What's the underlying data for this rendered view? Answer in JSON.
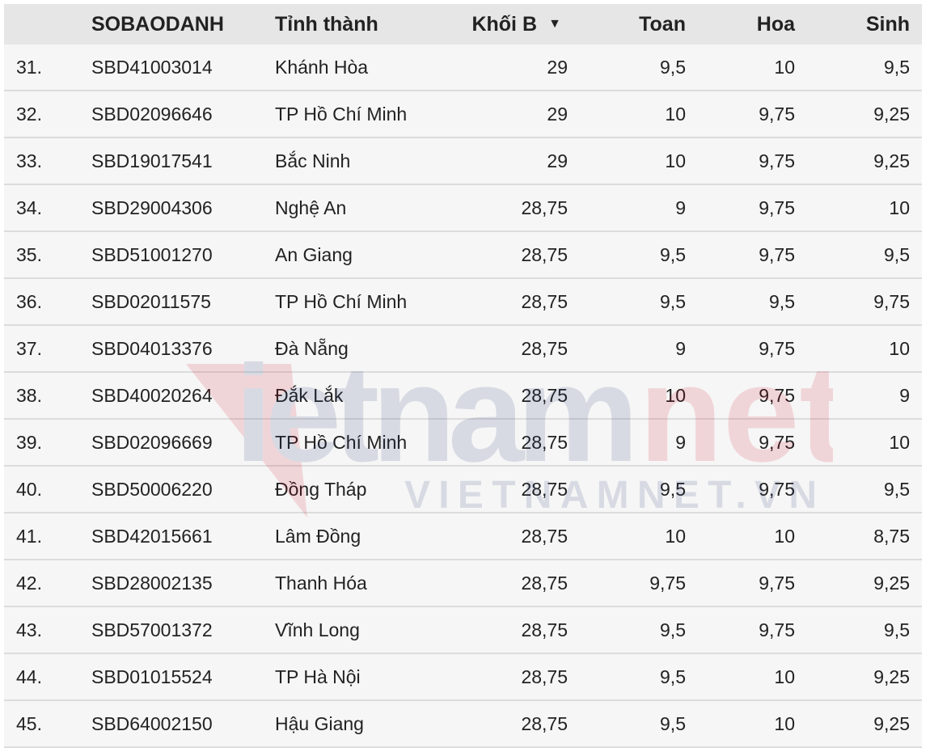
{
  "table": {
    "headers": {
      "rank": "",
      "id": "SOBAODANH",
      "province": "Tỉnh thành",
      "total": "Khối B",
      "math": "Toan",
      "chem": "Hoa",
      "bio": "Sinh"
    },
    "sort": {
      "column": "Khối B",
      "direction": "descending",
      "icon": "triangle-down-icon"
    },
    "rows": [
      {
        "rank": "31.",
        "id": "SBD41003014",
        "province": "Khánh Hòa",
        "total": "29",
        "math": "9,5",
        "chem": "10",
        "bio": "9,5"
      },
      {
        "rank": "32.",
        "id": "SBD02096646",
        "province": "TP Hồ Chí Minh",
        "total": "29",
        "math": "10",
        "chem": "9,75",
        "bio": "9,25"
      },
      {
        "rank": "33.",
        "id": "SBD19017541",
        "province": "Bắc Ninh",
        "total": "29",
        "math": "10",
        "chem": "9,75",
        "bio": "9,25"
      },
      {
        "rank": "34.",
        "id": "SBD29004306",
        "province": "Nghệ An",
        "total": "28,75",
        "math": "9",
        "chem": "9,75",
        "bio": "10"
      },
      {
        "rank": "35.",
        "id": "SBD51001270",
        "province": "An Giang",
        "total": "28,75",
        "math": "9,5",
        "chem": "9,75",
        "bio": "9,5"
      },
      {
        "rank": "36.",
        "id": "SBD02011575",
        "province": "TP Hồ Chí Minh",
        "total": "28,75",
        "math": "9,5",
        "chem": "9,5",
        "bio": "9,75"
      },
      {
        "rank": "37.",
        "id": "SBD04013376",
        "province": "Đà Nẵng",
        "total": "28,75",
        "math": "9",
        "chem": "9,75",
        "bio": "10"
      },
      {
        "rank": "38.",
        "id": "SBD40020264",
        "province": "Đắk Lắk",
        "total": "28,75",
        "math": "10",
        "chem": "9,75",
        "bio": "9"
      },
      {
        "rank": "39.",
        "id": "SBD02096669",
        "province": "TP Hồ Chí Minh",
        "total": "28,75",
        "math": "9",
        "chem": "9,75",
        "bio": "10"
      },
      {
        "rank": "40.",
        "id": "SBD50006220",
        "province": "Đồng Tháp",
        "total": "28,75",
        "math": "9,5",
        "chem": "9,75",
        "bio": "9,5"
      },
      {
        "rank": "41.",
        "id": "SBD42015661",
        "province": "Lâm Đồng",
        "total": "28,75",
        "math": "10",
        "chem": "10",
        "bio": "8,75"
      },
      {
        "rank": "42.",
        "id": "SBD28002135",
        "province": "Thanh Hóa",
        "total": "28,75",
        "math": "9,75",
        "chem": "9,75",
        "bio": "9,25"
      },
      {
        "rank": "43.",
        "id": "SBD57001372",
        "province": "Vĩnh Long",
        "total": "28,75",
        "math": "9,5",
        "chem": "9,75",
        "bio": "9,5"
      },
      {
        "rank": "44.",
        "id": "SBD01015524",
        "province": "TP Hà Nội",
        "total": "28,75",
        "math": "9,5",
        "chem": "10",
        "bio": "9,25"
      },
      {
        "rank": "45.",
        "id": "SBD64002150",
        "province": "Hậu Giang",
        "total": "28,75",
        "math": "9,5",
        "chem": "10",
        "bio": "9,25"
      }
    ]
  },
  "watermark": {
    "logo": "vietnamnet",
    "url_text": "VIETNAMNET.VN",
    "colors": {
      "red": "#d0021b",
      "navy": "#1a2a6c"
    }
  }
}
